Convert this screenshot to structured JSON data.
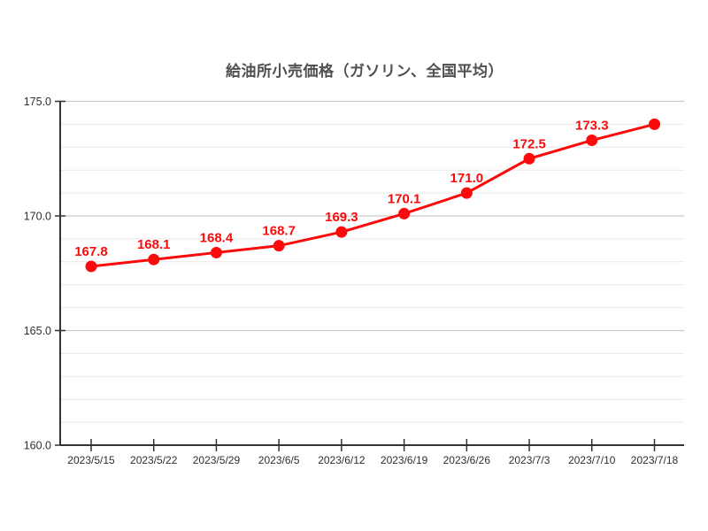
{
  "chart_data": {
    "type": "line",
    "title": "給油所小売価格（ガソリン、全国平均）",
    "categories": [
      "2023/5/15",
      "2023/5/22",
      "2023/5/29",
      "2023/6/5",
      "2023/6/12",
      "2023/6/19",
      "2023/6/26",
      "2023/7/3",
      "2023/7/10",
      "2023/7/18"
    ],
    "values": [
      167.8,
      168.1,
      168.4,
      168.7,
      169.3,
      170.1,
      171.0,
      172.5,
      173.3,
      174.0
    ],
    "point_labels": [
      "167.8",
      "168.1",
      "168.4",
      "168.7",
      "169.3",
      "170.1",
      "171.0",
      "172.5",
      "173.3",
      ""
    ],
    "xlabel": "",
    "ylabel": "",
    "ylim": [
      160.0,
      175.0
    ],
    "y_major_ticks": [
      160,
      165,
      170,
      175
    ],
    "y_tick_labels": [
      "160.0",
      "165.0",
      "170.0",
      "175.0"
    ],
    "y_minor_step": 1.0,
    "grid": "horizontal",
    "legend_position": "none",
    "colors": {
      "line": "#fa0a0a",
      "marker": "#fa0a0a",
      "data_label": "#fa0a0a",
      "axis": "#333333",
      "tick_label": "#2e2e2e",
      "title": "#4f4f4f",
      "grid_major": "#c9c9c9",
      "grid_minor": "#e9e9e9",
      "background": "#ffffff"
    }
  }
}
